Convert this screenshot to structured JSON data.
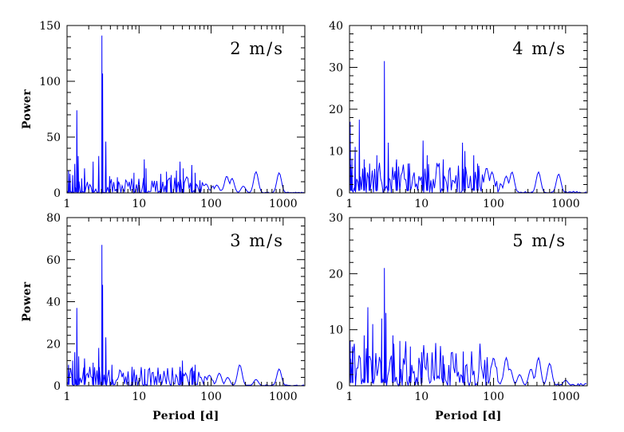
{
  "chart_data": [
    {
      "type": "line",
      "panel_label": "2 m/s",
      "xlabel": "",
      "ylabel": "Power",
      "xscale": "log",
      "xlim": [
        1,
        2000
      ],
      "ylim": [
        0,
        150
      ],
      "x_ticks": [
        "1",
        "10",
        "100",
        "1000"
      ],
      "y_ticks": [
        "0",
        "50",
        "100",
        "150"
      ],
      "noise_level": 8,
      "peaks": [
        {
          "x": 1.05,
          "y": 20
        },
        {
          "x": 1.1,
          "y": 17
        },
        {
          "x": 1.2,
          "y": 16
        },
        {
          "x": 1.28,
          "y": 26
        },
        {
          "x": 1.37,
          "y": 74
        },
        {
          "x": 1.43,
          "y": 33
        },
        {
          "x": 1.6,
          "y": 13
        },
        {
          "x": 1.75,
          "y": 22
        },
        {
          "x": 2.3,
          "y": 28
        },
        {
          "x": 2.75,
          "y": 33
        },
        {
          "x": 3.05,
          "y": 141
        },
        {
          "x": 3.12,
          "y": 107
        },
        {
          "x": 3.45,
          "y": 46
        },
        {
          "x": 3.9,
          "y": 15
        },
        {
          "x": 5.0,
          "y": 14
        },
        {
          "x": 8.5,
          "y": 18
        },
        {
          "x": 11.8,
          "y": 30
        },
        {
          "x": 12.5,
          "y": 22
        },
        {
          "x": 20,
          "y": 17
        },
        {
          "x": 24,
          "y": 19
        },
        {
          "x": 28,
          "y": 16
        },
        {
          "x": 33,
          "y": 20
        },
        {
          "x": 37,
          "y": 28
        },
        {
          "x": 41,
          "y": 22
        },
        {
          "x": 54,
          "y": 25
        },
        {
          "x": 60,
          "y": 18
        },
        {
          "x": 70,
          "y": 11
        }
      ],
      "smooth_bumps": [
        {
          "x": 85,
          "y": 8
        },
        {
          "x": 120,
          "y": 7
        },
        {
          "x": 165,
          "y": 15
        },
        {
          "x": 195,
          "y": 13
        },
        {
          "x": 280,
          "y": 6
        },
        {
          "x": 420,
          "y": 19
        },
        {
          "x": 880,
          "y": 18
        }
      ]
    },
    {
      "type": "line",
      "panel_label": "4 m/s",
      "xlabel": "",
      "ylabel": "",
      "xscale": "log",
      "xlim": [
        1,
        2000
      ],
      "ylim": [
        0,
        40
      ],
      "x_ticks": [
        "1",
        "10",
        "100",
        "1000"
      ],
      "y_ticks": [
        "0",
        "10",
        "20",
        "30",
        "40"
      ],
      "noise_level": 4,
      "peaks": [
        {
          "x": 1.02,
          "y": 17
        },
        {
          "x": 1.08,
          "y": 8
        },
        {
          "x": 1.2,
          "y": 11
        },
        {
          "x": 1.37,
          "y": 17.5
        },
        {
          "x": 1.6,
          "y": 8
        },
        {
          "x": 1.9,
          "y": 7
        },
        {
          "x": 2.4,
          "y": 9
        },
        {
          "x": 3.05,
          "y": 31.5
        },
        {
          "x": 3.45,
          "y": 12
        },
        {
          "x": 4.5,
          "y": 8
        },
        {
          "x": 6.5,
          "y": 7
        },
        {
          "x": 10.5,
          "y": 12.5
        },
        {
          "x": 12,
          "y": 9
        },
        {
          "x": 20,
          "y": 8
        },
        {
          "x": 37,
          "y": 12
        },
        {
          "x": 40,
          "y": 10
        },
        {
          "x": 53,
          "y": 9
        },
        {
          "x": 60,
          "y": 7
        }
      ],
      "smooth_bumps": [
        {
          "x": 80,
          "y": 6
        },
        {
          "x": 95,
          "y": 5
        },
        {
          "x": 150,
          "y": 4
        },
        {
          "x": 180,
          "y": 5
        },
        {
          "x": 420,
          "y": 5
        },
        {
          "x": 800,
          "y": 4.5
        }
      ]
    },
    {
      "type": "line",
      "panel_label": "3 m/s",
      "xlabel": "Period [d]",
      "ylabel": "Power",
      "xscale": "log",
      "xlim": [
        1,
        2000
      ],
      "ylim": [
        0,
        80
      ],
      "x_ticks": [
        "1",
        "10",
        "100",
        "1000"
      ],
      "y_ticks": [
        "0",
        "20",
        "40",
        "60",
        "80"
      ],
      "noise_level": 5,
      "peaks": [
        {
          "x": 1.05,
          "y": 10
        },
        {
          "x": 1.2,
          "y": 12
        },
        {
          "x": 1.28,
          "y": 16
        },
        {
          "x": 1.37,
          "y": 37
        },
        {
          "x": 1.45,
          "y": 14
        },
        {
          "x": 1.75,
          "y": 13
        },
        {
          "x": 2.3,
          "y": 11
        },
        {
          "x": 2.75,
          "y": 18
        },
        {
          "x": 3.05,
          "y": 67
        },
        {
          "x": 3.12,
          "y": 48
        },
        {
          "x": 3.45,
          "y": 23
        },
        {
          "x": 4.2,
          "y": 10
        },
        {
          "x": 8,
          "y": 9
        },
        {
          "x": 12,
          "y": 8
        },
        {
          "x": 37,
          "y": 9
        },
        {
          "x": 40,
          "y": 12
        },
        {
          "x": 55,
          "y": 9
        },
        {
          "x": 60,
          "y": 10
        }
      ],
      "smooth_bumps": [
        {
          "x": 95,
          "y": 5
        },
        {
          "x": 130,
          "y": 6
        },
        {
          "x": 170,
          "y": 4
        },
        {
          "x": 250,
          "y": 10
        },
        {
          "x": 420,
          "y": 3
        },
        {
          "x": 880,
          "y": 8
        }
      ]
    },
    {
      "type": "line",
      "panel_label": "5 m/s",
      "xlabel": "Period [d]",
      "ylabel": "",
      "xscale": "log",
      "xlim": [
        1,
        2000
      ],
      "ylim": [
        0,
        30
      ],
      "x_ticks": [
        "1",
        "10",
        "100",
        "1000"
      ],
      "y_ticks": [
        "0",
        "10",
        "20",
        "30"
      ],
      "noise_level": 4.5,
      "peaks": [
        {
          "x": 1.02,
          "y": 8
        },
        {
          "x": 1.1,
          "y": 7
        },
        {
          "x": 1.6,
          "y": 9
        },
        {
          "x": 1.8,
          "y": 14
        },
        {
          "x": 2.1,
          "y": 11
        },
        {
          "x": 2.8,
          "y": 12
        },
        {
          "x": 3.05,
          "y": 21
        },
        {
          "x": 3.2,
          "y": 13
        },
        {
          "x": 4,
          "y": 9
        },
        {
          "x": 5,
          "y": 8
        },
        {
          "x": 7,
          "y": 7
        },
        {
          "x": 10,
          "y": 6
        },
        {
          "x": 20,
          "y": 5
        },
        {
          "x": 38,
          "y": 6
        }
      ],
      "smooth_bumps": [
        {
          "x": 100,
          "y": 5
        },
        {
          "x": 150,
          "y": 5
        },
        {
          "x": 170,
          "y": 3
        },
        {
          "x": 230,
          "y": 2
        },
        {
          "x": 330,
          "y": 3
        },
        {
          "x": 420,
          "y": 5
        },
        {
          "x": 600,
          "y": 4
        },
        {
          "x": 1000,
          "y": 1
        }
      ]
    }
  ]
}
